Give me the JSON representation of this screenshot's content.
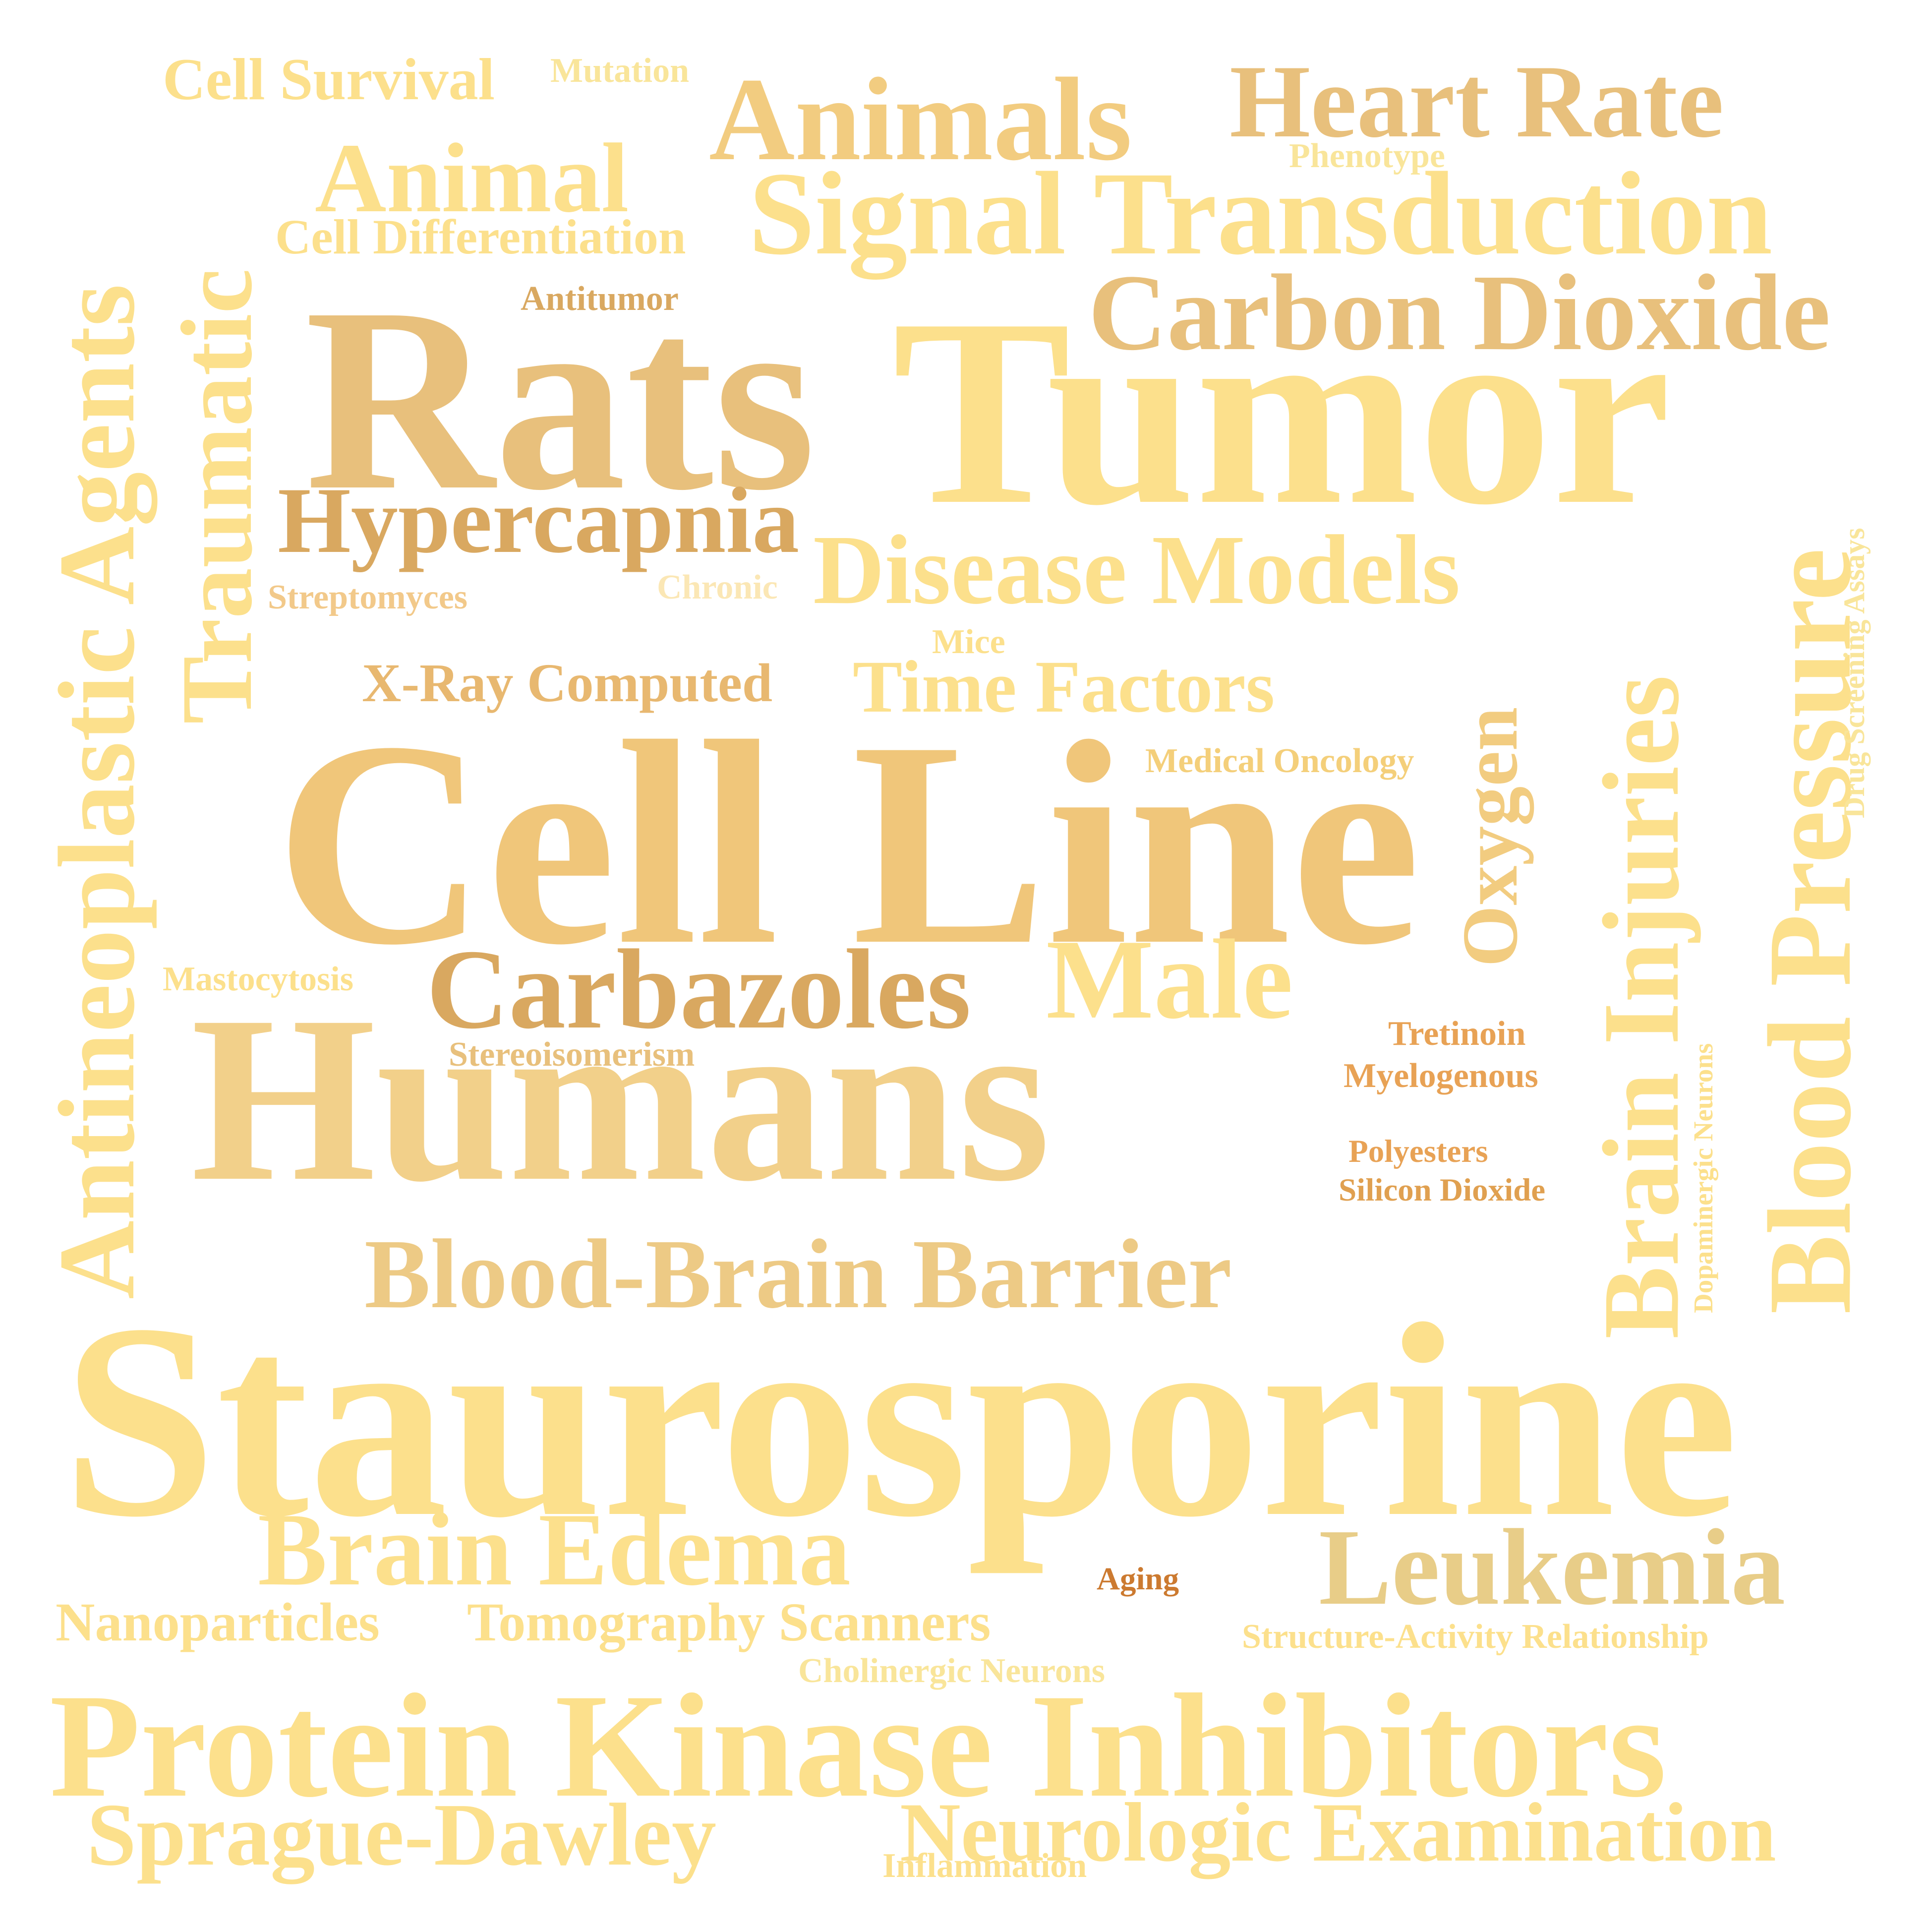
{
  "palette": {
    "light": "#FCE08C",
    "gold": "#F2CC80",
    "tan": "#E8C07C",
    "deep": "#D9A860",
    "orange": "#E8A255",
    "burnt": "#CC7A30",
    "pale": "#FBE7B5"
  },
  "words": {
    "cell_survival": "Cell Survival",
    "mutation": "Mutation",
    "animals": "Animals",
    "heart_rate": "Heart Rate",
    "phenotype": "Phenotype",
    "animal": "Animal",
    "signal_transduction": "Signal Transduction",
    "cell_differentiation": "Cell Differentiation",
    "antitumor": "Antitumor",
    "carbon_dioxide": "Carbon Dioxide",
    "rats": "Rats",
    "tumor": "Tumor",
    "hypercapnia": "Hypercapnia",
    "disease_models": "Disease Models",
    "streptomyces": "Streptomyces",
    "chronic": "Chronic",
    "mice": "Mice",
    "xray_computed": "X-Ray Computed",
    "time_factors": "Time Factors",
    "medical_oncology": "Medical Oncology",
    "cell_line": "Cell Line",
    "oxygen": "Oxygen",
    "brain_injuries": "Brain Injuries",
    "blood_pressure": "Blood Pressure",
    "drug_screening_assays": "Drug Screening Assays",
    "mastocytosis": "Mastocytosis",
    "carbazoles": "Carbazoles",
    "male": "Male",
    "tretinoin": "Tretinoin",
    "stereoisomerism": "Stereoisomerism",
    "myelogenous": "Myelogenous",
    "dopaminergic_neurons": "Dopaminergic Neurons",
    "humans": "Humans",
    "polyesters": "Polyesters",
    "silicon_dioxide": "Silicon Dioxide",
    "antineoplastic_agents": "Antineoplastic Agents",
    "traumatic": "Traumatic",
    "blood_brain_barrier": "Blood-Brain Barrier",
    "staurosporine": "Staurosporine",
    "brain_edema": "Brain Edema",
    "leukemia": "Leukemia",
    "aging": "Aging",
    "nanoparticles": "Nanoparticles",
    "tomography_scanners": "Tomography Scanners",
    "structure_activity_relationship": "Structure-Activity Relationship",
    "cholinergic_neurons": "Cholinergic Neurons",
    "protein_kinase_inhibitors": "Protein Kinase Inhibitors",
    "sprague_dawley": "Sprague-Dawley",
    "neurologic_examination": "Neurologic Examination",
    "inflammation": "Inflammation"
  }
}
